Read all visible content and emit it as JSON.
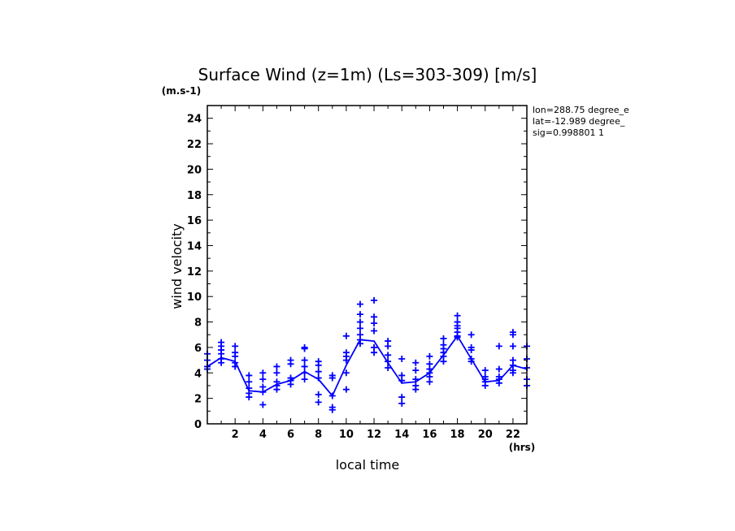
{
  "chart_data": {
    "type": "scatter",
    "title": "Surface Wind (z=1m) (Ls=303-309) [m/s]",
    "xlabel": "local time",
    "ylabel": "wind velocity",
    "x_unit": "(hrs)",
    "y_unit": "(m.s-1)",
    "xlim": [
      0,
      23
    ],
    "ylim": [
      0,
      25
    ],
    "x_ticks": [
      2,
      4,
      6,
      8,
      10,
      12,
      14,
      16,
      18,
      20,
      22
    ],
    "y_ticks": [
      0,
      2,
      4,
      6,
      8,
      10,
      12,
      14,
      16,
      18,
      20,
      22,
      24
    ],
    "grid": false,
    "color": "#0000ff",
    "info": [
      "lon=288.75 degree_e",
      "lat=-12.989 degree_",
      "sig=0.998801 1"
    ],
    "series": [
      {
        "kind": "line",
        "x": [
          0,
          1,
          2,
          3,
          4,
          5,
          6,
          7,
          8,
          9,
          10,
          11,
          12,
          13,
          14,
          15,
          16,
          17,
          18,
          19,
          20,
          21,
          22,
          23
        ],
        "y": [
          4.5,
          5.2,
          4.9,
          2.6,
          2.5,
          3.1,
          3.4,
          4.1,
          3.5,
          2.2,
          4.6,
          6.6,
          6.5,
          4.8,
          3.2,
          3.3,
          4.0,
          5.4,
          6.9,
          5.1,
          3.3,
          3.4,
          4.6,
          4.3
        ]
      },
      {
        "kind": "scatter",
        "x": [
          0,
          0,
          0,
          0,
          1,
          1,
          1,
          1,
          1,
          1,
          2,
          2,
          2,
          2,
          2,
          3,
          3,
          3,
          3,
          3,
          4,
          4,
          4,
          4,
          4,
          5,
          5,
          5,
          5,
          5,
          6,
          6,
          6,
          6,
          6,
          7,
          7,
          7,
          7,
          7,
          7,
          8,
          8,
          8,
          8,
          8,
          8,
          9,
          9,
          9,
          9,
          9,
          10,
          10,
          10,
          10,
          10,
          10,
          11,
          11,
          11,
          11,
          11,
          11,
          11,
          12,
          12,
          12,
          12,
          12,
          12,
          13,
          13,
          13,
          13,
          13,
          14,
          14,
          14,
          14,
          14,
          15,
          15,
          15,
          15,
          15,
          16,
          16,
          16,
          16,
          16,
          16,
          17,
          17,
          17,
          17,
          17,
          17,
          18,
          18,
          18,
          18,
          18,
          18,
          18,
          19,
          19,
          19,
          19,
          19,
          20,
          20,
          20,
          20,
          20,
          21,
          21,
          21,
          21,
          21,
          22,
          22,
          22,
          22,
          22,
          22,
          22,
          23,
          23,
          23,
          23,
          23
        ],
        "y": [
          5.5,
          5.0,
          4.5,
          4.3,
          6.4,
          6.1,
          5.8,
          5.5,
          5.1,
          4.8,
          6.1,
          5.6,
          5.3,
          4.8,
          4.5,
          3.8,
          3.3,
          2.8,
          2.4,
          2.1,
          4.0,
          3.5,
          2.9,
          2.5,
          1.5,
          4.5,
          4.0,
          3.3,
          3.0,
          2.7,
          5.0,
          4.7,
          3.6,
          3.4,
          3.1,
          6.0,
          5.9,
          5.0,
          4.5,
          4.0,
          3.5,
          4.9,
          4.6,
          4.1,
          3.6,
          2.3,
          1.7,
          3.8,
          3.6,
          2.2,
          1.3,
          1.1,
          6.9,
          5.6,
          5.3,
          5.0,
          4.0,
          2.7,
          9.4,
          8.6,
          8.0,
          7.5,
          7.0,
          6.6,
          6.3,
          9.7,
          8.4,
          7.9,
          7.3,
          6.0,
          5.6,
          6.5,
          6.1,
          5.4,
          4.9,
          4.4,
          5.1,
          3.8,
          3.4,
          2.1,
          1.6,
          4.8,
          4.2,
          3.5,
          3.0,
          2.7,
          5.3,
          4.7,
          4.3,
          4.0,
          3.7,
          3.3,
          6.7,
          6.2,
          5.9,
          5.6,
          5.3,
          4.9,
          8.5,
          8.0,
          7.7,
          7.5,
          7.2,
          6.9,
          6.8,
          7.0,
          6.0,
          5.8,
          5.1,
          4.9,
          4.2,
          3.7,
          3.3,
          3.0,
          3.5,
          6.1,
          4.3,
          3.7,
          3.2,
          3.5,
          7.2,
          7.0,
          6.1,
          5.0,
          4.6,
          4.2,
          4.0,
          6.1,
          5.1,
          4.4,
          3.5,
          3.0
        ]
      }
    ]
  }
}
